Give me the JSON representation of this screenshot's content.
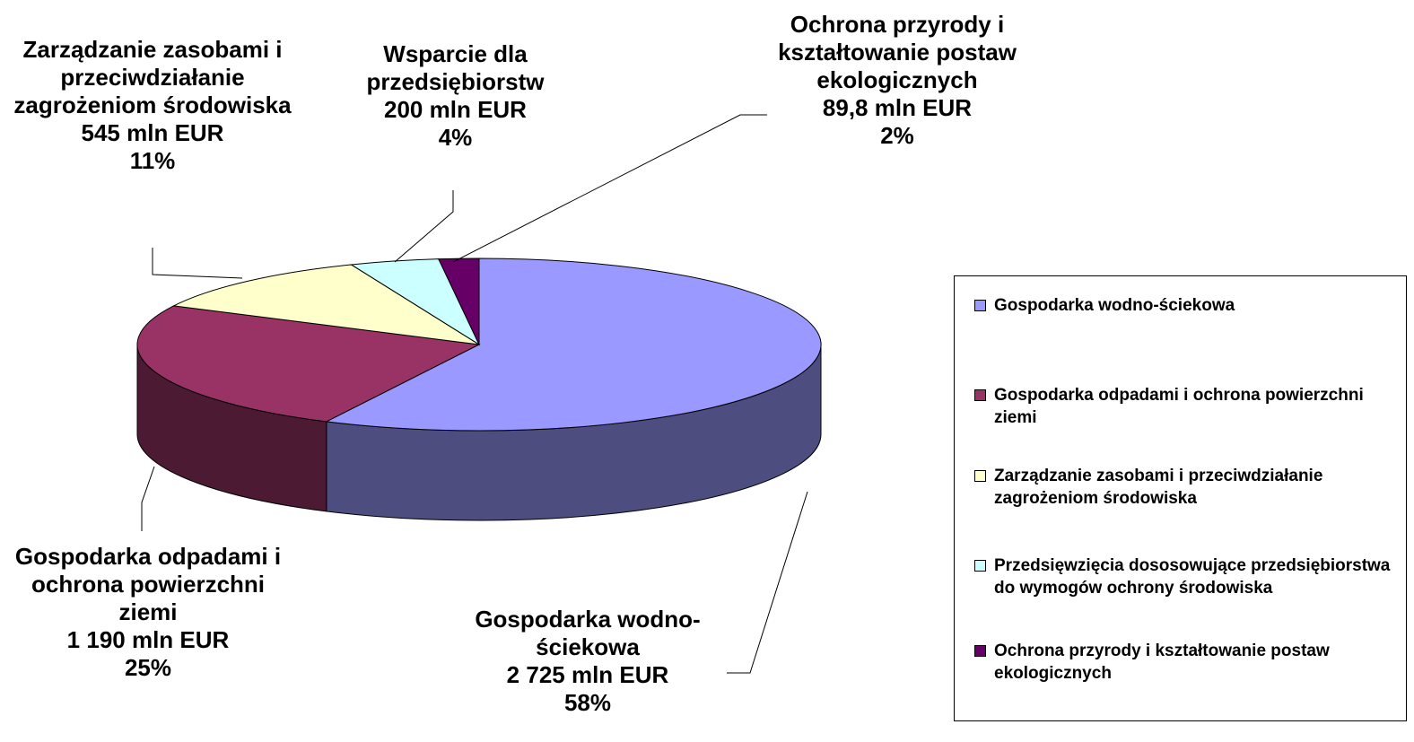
{
  "chart_data": {
    "type": "pie3d",
    "categories": [
      "Gospodarka wodno-ściekowa",
      "Gospodarka odpadami i ochrona powierzchni ziemi",
      "Zarządzanie zasobami i przeciwdziałanie zagrożeniom środowiska",
      "Przedsięwzięcia dososowujące przedsiębiorstwa do wymogów ochrony środowiska",
      "Ochrona przyrody i kształtowanie postaw ekologicznych"
    ],
    "slice_labels": [
      "Gospodarka wodno-ściekowa",
      "Gospodarka odpadami i ochrona powierzchni ziemi",
      "Zarządzanie zasobami i przeciwdziałanie zagrożeniom środowiska",
      "Wsparcie dla przedsiębiorstw",
      "Ochrona przyrody i kształtowanie postaw ekologicznych"
    ],
    "values": [
      2725,
      1190,
      545,
      200,
      89.8
    ],
    "value_labels": [
      "2 725 mln EUR",
      "1 190 mln EUR",
      "545 mln EUR",
      "200 mln EUR",
      "89,8 mln EUR"
    ],
    "percents": [
      58,
      25,
      11,
      4,
      2
    ],
    "percent_labels": [
      "58%",
      "25%",
      "11%",
      "4%",
      "2%"
    ],
    "colors": [
      "#9999ff",
      "#993366",
      "#ffffcc",
      "#ccffff",
      "#660066"
    ],
    "legend": "right"
  }
}
